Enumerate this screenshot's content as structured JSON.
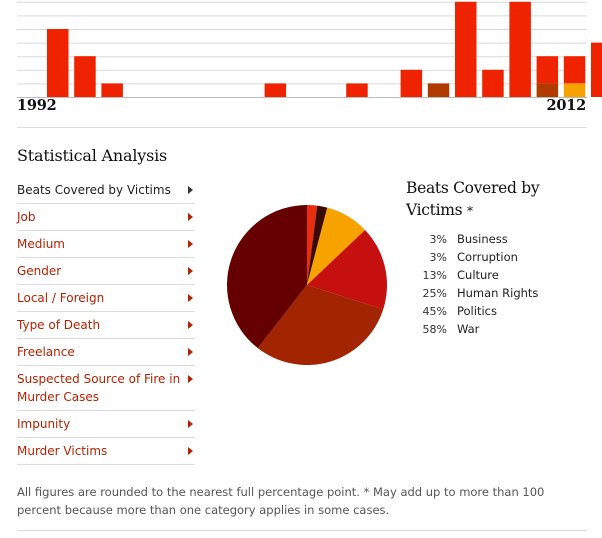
{
  "timeline": {
    "start_year": "1992",
    "end_year": "2012"
  },
  "section_title": "Statistical Analysis",
  "menu": [
    {
      "label": "Beats Covered by Victims",
      "active": true
    },
    {
      "label": "Job",
      "active": false
    },
    {
      "label": "Medium",
      "active": false
    },
    {
      "label": "Gender",
      "active": false
    },
    {
      "label": "Local / Foreign",
      "active": false
    },
    {
      "label": "Type of Death",
      "active": false
    },
    {
      "label": "Freelance",
      "active": false
    },
    {
      "label": "Suspected Source of Fire in Murder Cases",
      "active": false
    },
    {
      "label": "Impunity",
      "active": false
    },
    {
      "label": "Murder Victims",
      "active": false
    }
  ],
  "legend_title": "Beats Covered by Victims",
  "legend_asterisk": "*",
  "footnote": "All figures are rounded to the nearest full percentage point. * May add up to more than 100 percent because more than one category applies in some cases.",
  "colors": {
    "bar": "#ef2300",
    "bar_dark": "#b13a00",
    "bar_orange": "#f8a200",
    "grid": "#d9d9d9"
  },
  "chart_data": [
    {
      "type": "bar",
      "x": [
        1992,
        1993,
        1994,
        1995,
        1996,
        1997,
        1998,
        1999,
        2000,
        2001,
        2002,
        2003,
        2004,
        2005,
        2006,
        2007,
        2008,
        2009,
        2010,
        2011,
        2012
      ],
      "series": [
        {
          "values": [
            5,
            3,
            1,
            0,
            0,
            0,
            0,
            0,
            1,
            0,
            0,
            1,
            0,
            2,
            1,
            7,
            2,
            7,
            3,
            3,
            4
          ]
        }
      ],
      "segments": [
        {
          "year": 2006,
          "dark": 1
        },
        {
          "year": 2010,
          "dark": 1
        },
        {
          "year": 2011,
          "orange": 1
        }
      ],
      "ylim": [
        0,
        8
      ],
      "grid": true
    },
    {
      "type": "pie",
      "title": "Beats Covered by Victims",
      "slices": [
        {
          "label": "Business",
          "value": 3,
          "color": "#e82e0c"
        },
        {
          "label": "Corruption",
          "value": 3,
          "color": "#3a0a06"
        },
        {
          "label": "Culture",
          "value": 13,
          "color": "#f8a200"
        },
        {
          "label": "Human Rights",
          "value": 25,
          "color": "#c60f0f"
        },
        {
          "label": "Politics",
          "value": 45,
          "color": "#a22400"
        },
        {
          "label": "War",
          "value": 58,
          "color": "#660000"
        }
      ]
    }
  ]
}
